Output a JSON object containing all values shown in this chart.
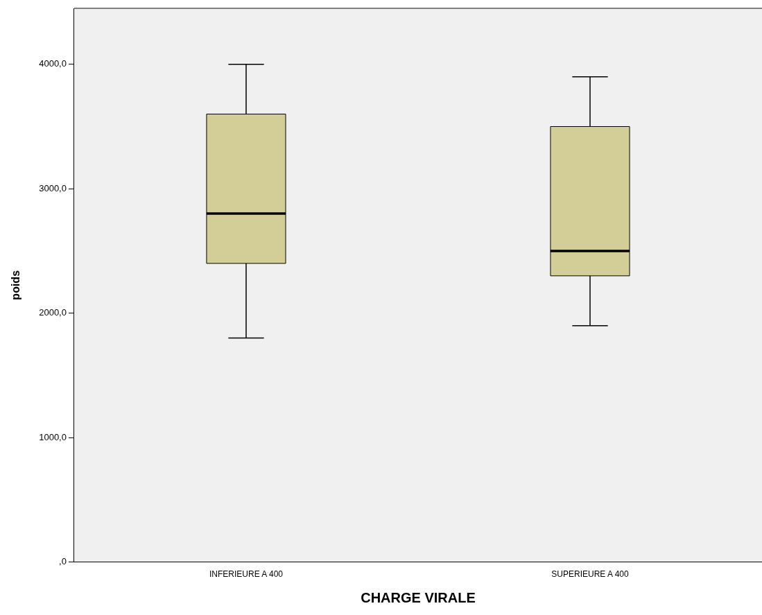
{
  "chart_data": {
    "type": "box",
    "xlabel": "CHARGE VIRALE",
    "ylabel": "poids",
    "categories": [
      "INFERIEURE A 400",
      "SUPERIEURE A 400"
    ],
    "color": "#d3cd98",
    "boxes": [
      {
        "low": 1800,
        "q1": 2400,
        "median": 2800,
        "q3": 3600,
        "high": 4000
      },
      {
        "low": 1900,
        "q1": 2300,
        "median": 2500,
        "q3": 3500,
        "high": 3900
      }
    ],
    "ylim": [
      0,
      4450
    ],
    "yticks": [
      {
        "value": 0,
        "label": ",0"
      },
      {
        "value": 1000,
        "label": "1000,0"
      },
      {
        "value": 2000,
        "label": "2000,0"
      },
      {
        "value": 3000,
        "label": "3000,0"
      },
      {
        "value": 4000,
        "label": "4000,0"
      }
    ],
    "grid": false,
    "legend": false
  }
}
